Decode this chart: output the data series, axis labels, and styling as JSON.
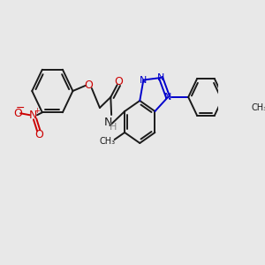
{
  "bg_color": "#e8e8e8",
  "bond_color": "#1a1a1a",
  "bond_width": 1.4,
  "figsize": [
    3.0,
    3.0
  ],
  "dpi": 100,
  "xlim": [
    0,
    300
  ],
  "ylim": [
    0,
    300
  ]
}
